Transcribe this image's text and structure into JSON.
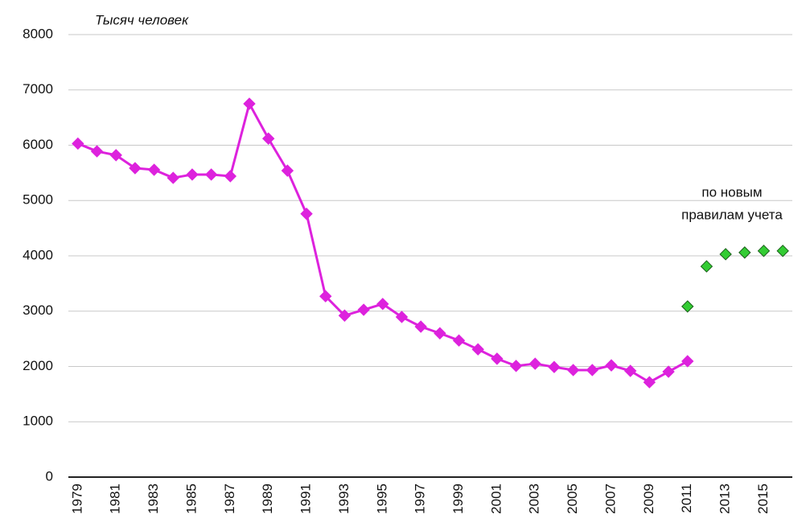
{
  "chart_data": {
    "type": "line",
    "y_label": "Тысяч человек",
    "annotation": [
      "по новым",
      "правилам учета"
    ],
    "x": [
      1979,
      1980,
      1981,
      1982,
      1983,
      1984,
      1985,
      1986,
      1987,
      1988,
      1989,
      1990,
      1991,
      1992,
      1993,
      1994,
      1995,
      1996,
      1997,
      1998,
      1999,
      2000,
      2001,
      2002,
      2003,
      2004,
      2005,
      2006,
      2007,
      2008,
      2009,
      2010,
      2011,
      2012,
      2013,
      2014,
      2015,
      2016
    ],
    "series": [
      {
        "color": "#dd22dd",
        "line": true,
        "values": [
          6030,
          5890,
          5820,
          5585,
          5556,
          5410,
          5470,
          5470,
          5440,
          6750,
          6120,
          5540,
          4760,
          3270,
          2920,
          3025,
          3130,
          2895,
          2720,
          2600,
          2470,
          2310,
          2140,
          2010,
          2050,
          1990,
          1935,
          1935,
          2020,
          1920,
          1715,
          1905,
          2095,
          null,
          null,
          null,
          null,
          null
        ]
      },
      {
        "color": "#33cc33",
        "line": false,
        "values": [
          null,
          null,
          null,
          null,
          null,
          null,
          null,
          null,
          null,
          null,
          null,
          null,
          null,
          null,
          null,
          null,
          null,
          null,
          null,
          null,
          null,
          null,
          null,
          null,
          null,
          null,
          null,
          null,
          null,
          null,
          null,
          null,
          3085,
          3810,
          4030,
          4060,
          4090,
          4090
        ]
      }
    ],
    "xlim": [
      1978.5,
      2016.5
    ],
    "xticks": [
      1979,
      1981,
      1983,
      1985,
      1987,
      1989,
      1991,
      1993,
      1995,
      1997,
      1999,
      2001,
      2003,
      2005,
      2007,
      2009,
      2011,
      2013,
      2015
    ],
    "ylim": [
      0,
      8000
    ],
    "yticks": [
      0,
      1000,
      2000,
      3000,
      4000,
      5000,
      6000,
      7000,
      8000
    ],
    "grid": true
  }
}
